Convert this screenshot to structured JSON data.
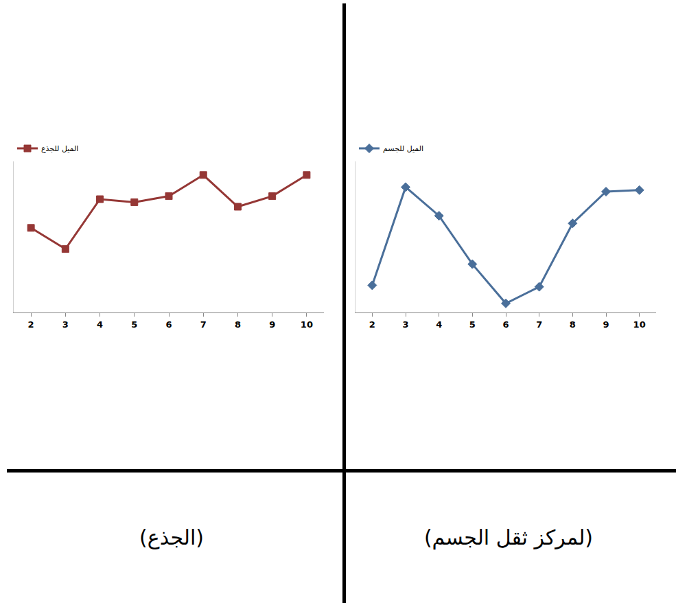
{
  "chart_data": [
    {
      "type": "line",
      "title": "(الجذع)",
      "categories": [
        "2",
        "3",
        "4",
        "5",
        "6",
        "7",
        "8",
        "9",
        "10"
      ],
      "series": [
        {
          "name": "الميل للجذع",
          "color": "#953735",
          "marker": "square",
          "line_style": "solid",
          "values": [
            56,
            42,
            75,
            73,
            77,
            91,
            70,
            77,
            91
          ]
        }
      ],
      "ylim": [
        0,
        100
      ],
      "tick_labels": "x",
      "grid": false,
      "legend": "top left"
    },
    {
      "type": "line",
      "title": "(لمركز ثقل الجسم)",
      "categories": [
        "2",
        "3",
        "4",
        "5",
        "6",
        "7",
        "8",
        "9",
        "10"
      ],
      "series": [
        {
          "name": "الميل للجسم",
          "color": "#4a6f9a",
          "marker": "diamond",
          "line_style": "solid",
          "values": [
            18,
            83,
            64,
            32,
            6,
            17,
            59,
            80,
            81
          ]
        }
      ],
      "ylim": [
        0,
        100
      ],
      "tick_labels": "x",
      "grid": false,
      "legend": "top left"
    }
  ]
}
